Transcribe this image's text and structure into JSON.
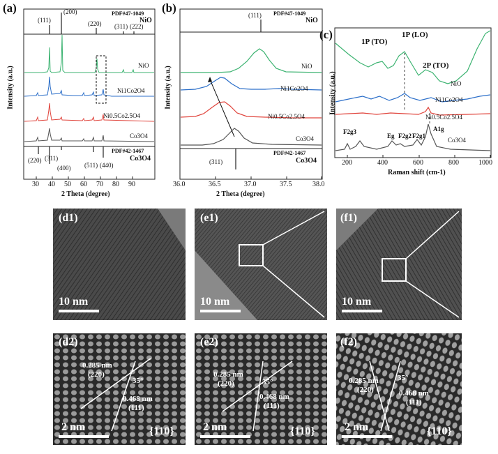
{
  "panels": {
    "a": {
      "label": "(a)",
      "ref_top": "PDF#47-1049",
      "ref_top_name": "NiO",
      "ref_top_peaks": [
        "(111)",
        "(200)",
        "(220)",
        "(311)",
        "(222)"
      ],
      "ref_bottom": "PDF#42-1467",
      "ref_bottom_name": "Co3O4",
      "ref_bottom_peaks": [
        "(220)",
        "(311)",
        "(400)",
        "(511)",
        "(440)"
      ],
      "curves": [
        "NiO",
        "Ni1Co2O4",
        "Ni0.5Co2.5O4",
        "Co3O4"
      ],
      "ylabel": "Intensity (a.u.)",
      "xlabel": "2 Theta (degree)",
      "xticks": [
        "30",
        "40",
        "50",
        "60",
        "70",
        "80",
        "90"
      ]
    },
    "b": {
      "label": "(b)",
      "ref_top": "PDF#47-1049",
      "ref_top_name": "NiO",
      "ref_top_peak": "(111)",
      "ref_bottom": "PDF#42-1467",
      "ref_bottom_name": "Co3O4",
      "ref_bottom_peak": "(311)",
      "curves": [
        "NiO",
        "Ni1Co2O4",
        "Ni0.5Co2.5O4",
        "Co3O4"
      ],
      "ylabel": "Intensity (a.u.)",
      "xlabel": "2 Theta (degree)",
      "xticks": [
        "36.0",
        "36.5",
        "37.0",
        "37.5",
        "38.0"
      ]
    },
    "c": {
      "label": "(c)",
      "modes": [
        "1P (TO)",
        "1P (LO)",
        "2P (TO)"
      ],
      "curves": [
        "NiO",
        "Ni1Co2O4",
        "Ni0.5Co2.5O4",
        "Co3O4"
      ],
      "peaks": [
        "F2g3",
        "Eg",
        "F2g2",
        "F2g1",
        "A1g"
      ],
      "ylabel": "Intensity (a.u.)",
      "xlabel": "Raman shift (cm-1)",
      "xticks": [
        "200",
        "400",
        "600",
        "800",
        "1000"
      ]
    },
    "tem": [
      {
        "label": "(d1)",
        "scale": "10 nm"
      },
      {
        "label": "(e1)",
        "scale": "10 nm"
      },
      {
        "label": "(f1)",
        "scale": "10 nm"
      }
    ],
    "hrtem": [
      {
        "label": "(d2)",
        "d1": "0.285 nm",
        "p1": "(220)",
        "angle": "35°",
        "d2": "0.468 nm",
        "p2": "(111)",
        "scale": "2 nm",
        "zone": "{110}"
      },
      {
        "label": "(e2)",
        "d1": "0.285 nm",
        "p1": "(220)",
        "angle": "35°",
        "d2": "0.468 nm",
        "p2": "(111)",
        "scale": "2 nm",
        "zone": "{110}"
      },
      {
        "label": "(f2)",
        "d1": "0.285 nm",
        "p1": "(220)",
        "angle": "35°",
        "d2": "0.468 nm",
        "p2": "(111)",
        "scale": "2 nm",
        "zone": "{110}"
      }
    ]
  },
  "colors": {
    "nio": "#3cb371",
    "ni1": "#2c6fc9",
    "ni05": "#e0443c",
    "co3o4": "#555555"
  }
}
